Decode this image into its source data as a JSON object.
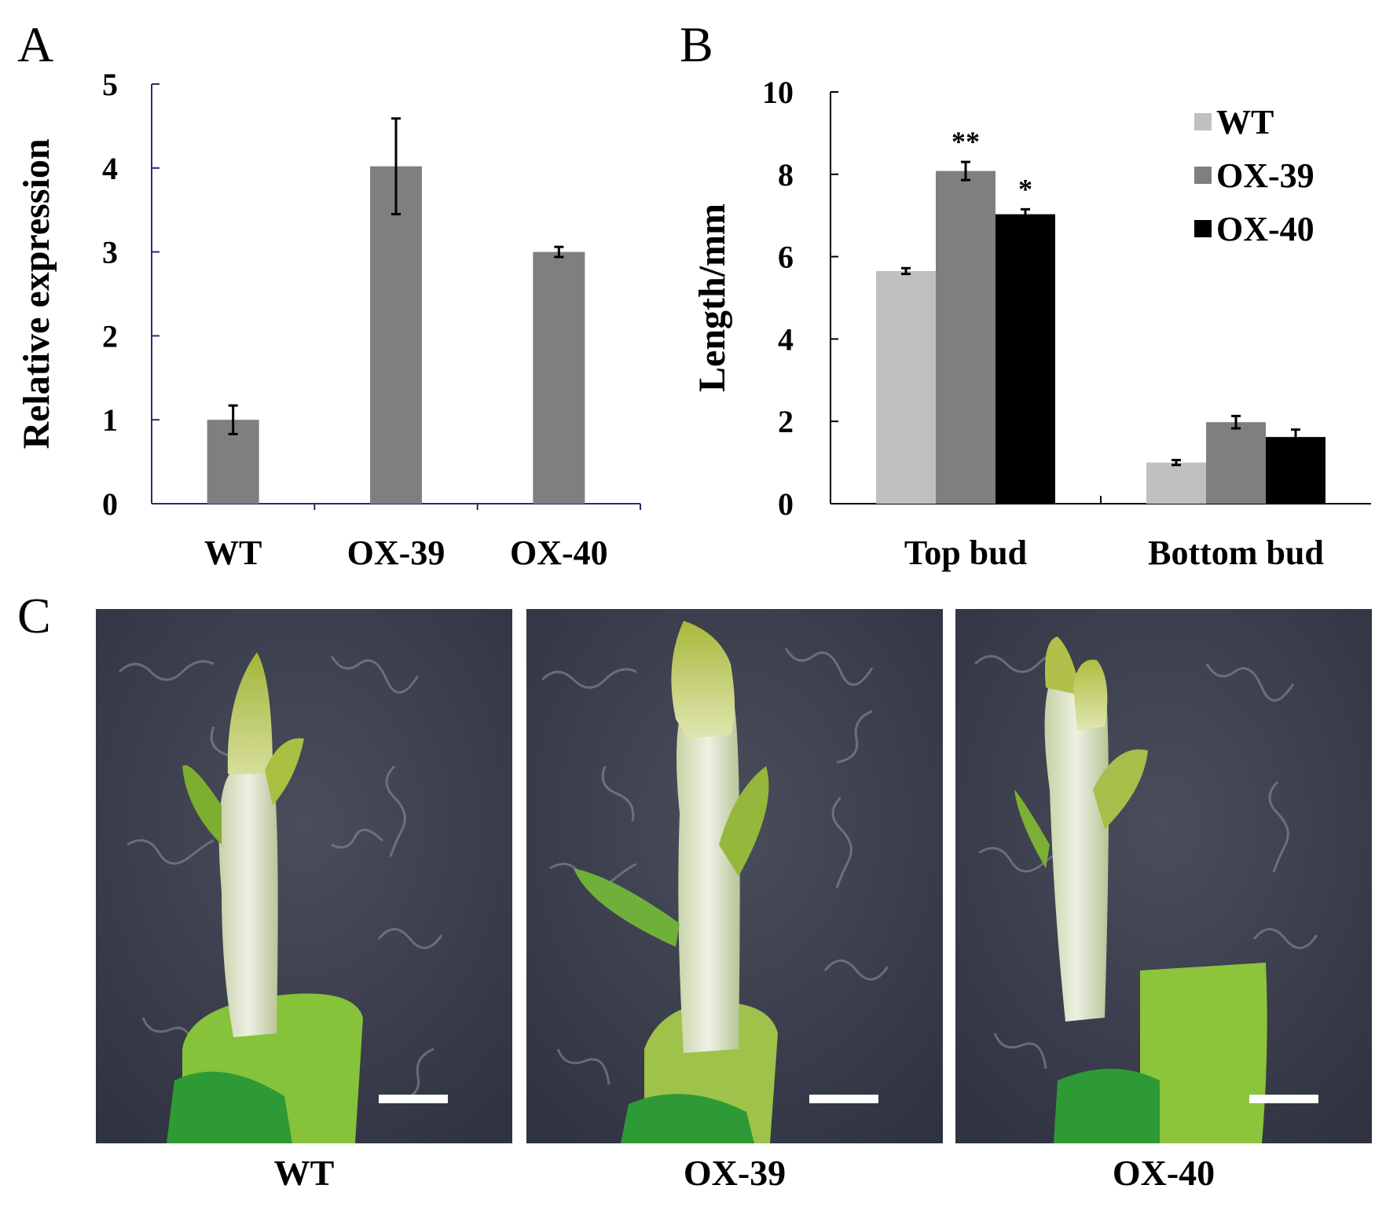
{
  "panels": {
    "a": "A",
    "b": "B",
    "c": "C"
  },
  "chart_data": [
    {
      "type": "bar",
      "categories": [
        "WT",
        "OX-39",
        "OX-40"
      ],
      "values": [
        1.0,
        4.02,
        3.0
      ],
      "errors": [
        0.17,
        0.57,
        0.06
      ],
      "ylabel": "Relative expression",
      "ylim": [
        0,
        5
      ],
      "yticks": [
        "0",
        "1",
        "2",
        "3",
        "4",
        "5"
      ],
      "bar_color": "#7f7f7f",
      "axis_color": "#2b2a6e"
    },
    {
      "type": "bar",
      "categories": [
        "Top bud",
        "Bottom bud"
      ],
      "series": [
        {
          "name": "WT",
          "values": [
            5.65,
            1.0
          ],
          "errors": [
            0.07,
            0.06
          ],
          "color": "#c0c0c0"
        },
        {
          "name": "OX-39",
          "values": [
            8.08,
            1.98
          ],
          "errors": [
            0.22,
            0.15
          ],
          "color": "#7f7f7f"
        },
        {
          "name": "OX-40",
          "values": [
            7.03,
            1.62
          ],
          "errors": [
            0.12,
            0.18
          ],
          "color": "#000000"
        }
      ],
      "significance": [
        [
          "",
          ""
        ],
        [
          "**",
          ""
        ],
        [
          "*",
          ""
        ]
      ],
      "ylabel": "Length/mm",
      "ylim": [
        0,
        10
      ],
      "yticks": [
        "0",
        "2",
        "4",
        "6",
        "8",
        "10"
      ],
      "legend": "top-right"
    }
  ],
  "photos": {
    "labels": [
      "WT",
      "OX-39",
      "OX-40"
    ]
  }
}
